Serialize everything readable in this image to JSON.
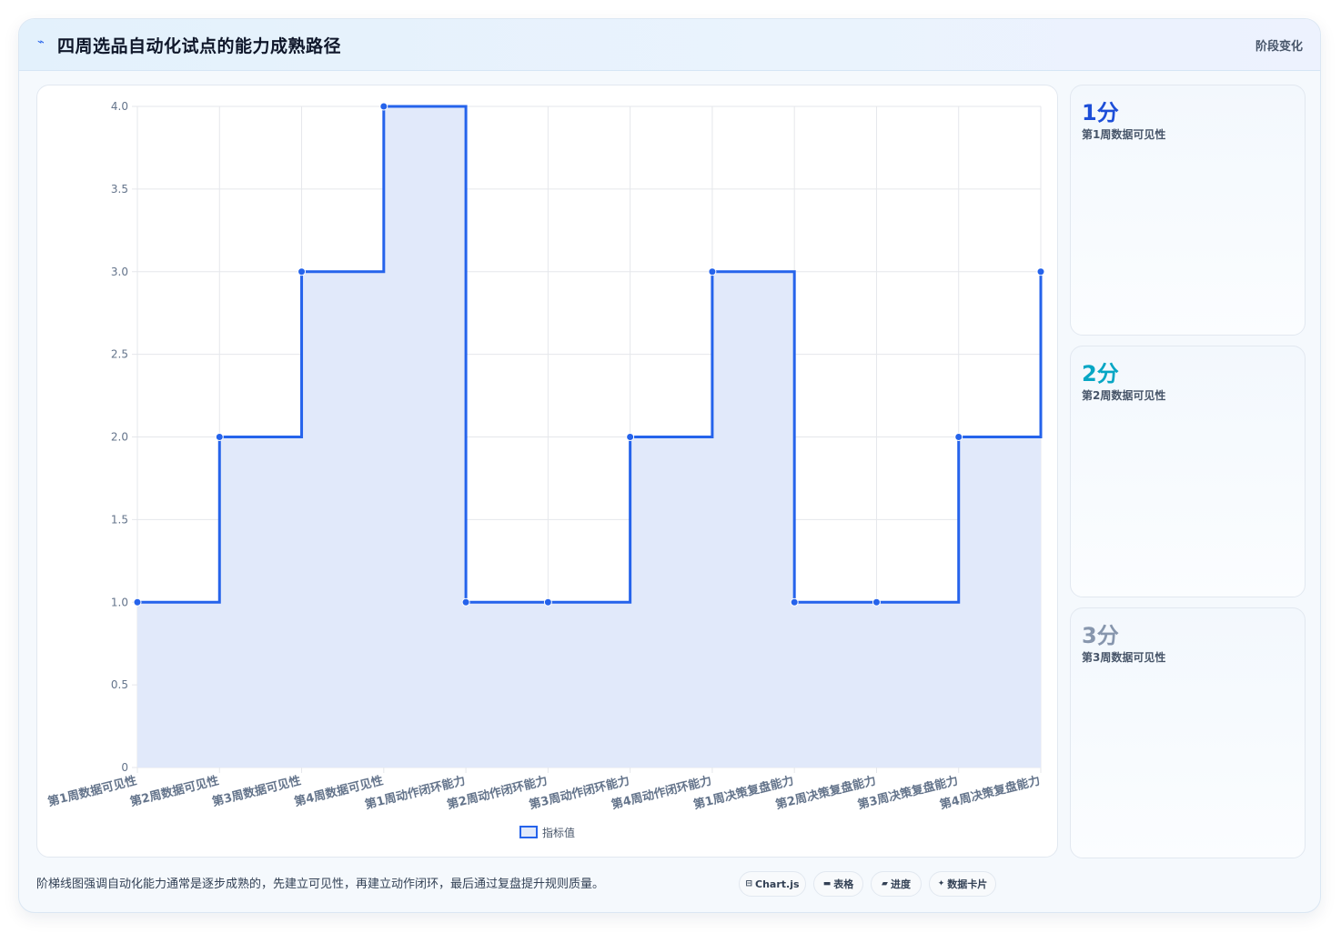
{
  "header": {
    "icon": "activity-icon",
    "title": "四周选品自动化试点的能力成熟路径",
    "stage_link": "阶段变化"
  },
  "chart_data": {
    "type": "line",
    "stepped": true,
    "filled": true,
    "categories": [
      "第1周数据可见性",
      "第2周数据可见性",
      "第3周数据可见性",
      "第4周数据可见性",
      "第1周动作闭环能力",
      "第2周动作闭环能力",
      "第3周动作闭环能力",
      "第4周动作闭环能力",
      "第1周决策复盘能力",
      "第2周决策复盘能力",
      "第3周决策复盘能力",
      "第4周决策复盘能力"
    ],
    "series": [
      {
        "name": "指标值",
        "values": [
          1,
          2,
          3,
          4,
          1,
          1,
          2,
          3,
          1,
          1,
          2,
          3
        ],
        "color": "#2563eb",
        "fill": "#e1e9fa"
      }
    ],
    "ylim": [
      0,
      4
    ],
    "yticks": [
      "0",
      "0.5",
      "1.0",
      "1.5",
      "2.0",
      "2.5",
      "3.0",
      "3.5",
      "4.0"
    ],
    "grid": true,
    "legend_position": "bottom",
    "xlabel": "",
    "ylabel": ""
  },
  "score_cards": [
    {
      "value": "1分",
      "label": "第1周数据可见性",
      "color": "#1d4ed8"
    },
    {
      "value": "2分",
      "label": "第2周数据可见性",
      "color": "#06a6c4"
    },
    {
      "value": "3分",
      "label": "第3周数据可见性",
      "color": "#8796ad"
    }
  ],
  "footer": {
    "note": "阶梯线图强调自动化能力通常是逐步成熟的，先建立可见性，再建立动作闭环，最后通过复盘提升规则质量。",
    "chips": [
      {
        "label": "Chart.js",
        "icon": "chart-icon",
        "glyph": "⊟"
      },
      {
        "label": "表格",
        "icon": "table-icon",
        "glyph": "▬"
      },
      {
        "label": "进度",
        "icon": "progress-icon",
        "glyph": "▰"
      },
      {
        "label": "数据卡片",
        "icon": "sparkle-icon",
        "glyph": "✦"
      }
    ]
  }
}
